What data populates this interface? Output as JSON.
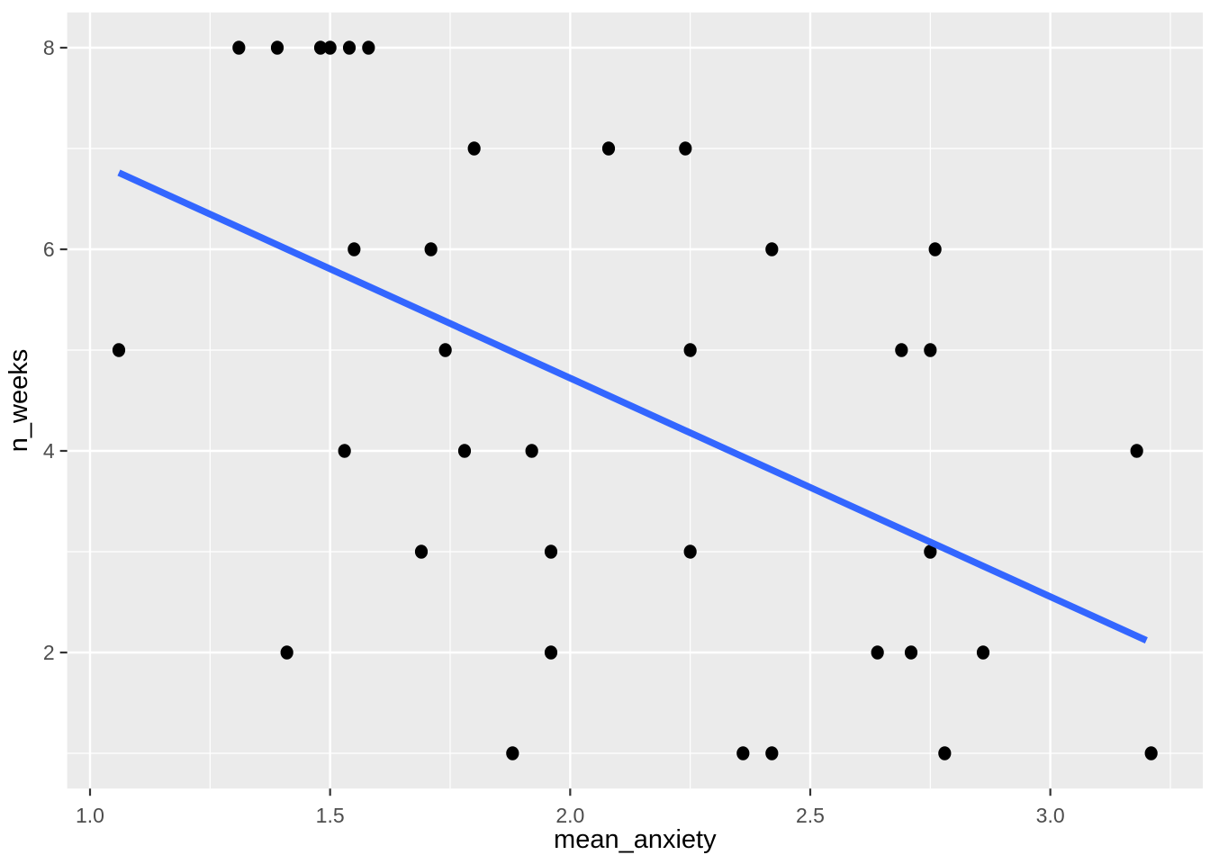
{
  "chart_data": {
    "type": "scatter",
    "title": "",
    "xlabel": "mean_anxiety",
    "ylabel": "n_weeks",
    "x_ticks": [
      {
        "value": 1.0,
        "label": "1.0"
      },
      {
        "value": 1.5,
        "label": "1.5"
      },
      {
        "value": 2.0,
        "label": "2.0"
      },
      {
        "value": 2.5,
        "label": "2.5"
      },
      {
        "value": 3.0,
        "label": "3.0"
      }
    ],
    "y_ticks": [
      {
        "value": 8,
        "label": "8"
      },
      {
        "value": 6,
        "label": "6"
      },
      {
        "value": 4,
        "label": "4"
      },
      {
        "value": 2,
        "label": "2"
      }
    ],
    "x_minor_gridlines": [
      1.25,
      1.75,
      2.25,
      2.75,
      3.25
    ],
    "y_minor_gridlines": [
      1,
      3,
      5,
      7
    ],
    "xlim": [
      0.9525,
      3.3175
    ],
    "ylim": [
      0.65,
      8.35
    ],
    "grid": "major-and-minor",
    "legend": "none",
    "colors": {
      "panel_background": "#EBEBEB",
      "gridline": "#FFFFFF",
      "point": "#000000",
      "trend_line": "#3366FF",
      "tick_mark": "#333333",
      "tick_label": "#4D4D4D",
      "axis_title": "#000000",
      "figure_background": "#FFFFFF"
    },
    "points": [
      {
        "x": 1.31,
        "y": 8
      },
      {
        "x": 1.39,
        "y": 8
      },
      {
        "x": 1.48,
        "y": 8
      },
      {
        "x": 1.5,
        "y": 8
      },
      {
        "x": 1.54,
        "y": 8
      },
      {
        "x": 1.58,
        "y": 8
      },
      {
        "x": 1.8,
        "y": 7
      },
      {
        "x": 2.08,
        "y": 7
      },
      {
        "x": 2.24,
        "y": 7
      },
      {
        "x": 1.55,
        "y": 6
      },
      {
        "x": 1.71,
        "y": 6
      },
      {
        "x": 2.42,
        "y": 6
      },
      {
        "x": 2.76,
        "y": 6
      },
      {
        "x": 1.06,
        "y": 5
      },
      {
        "x": 1.74,
        "y": 5
      },
      {
        "x": 2.25,
        "y": 5
      },
      {
        "x": 2.69,
        "y": 5
      },
      {
        "x": 2.75,
        "y": 5
      },
      {
        "x": 1.53,
        "y": 4
      },
      {
        "x": 1.78,
        "y": 4
      },
      {
        "x": 1.92,
        "y": 4
      },
      {
        "x": 3.18,
        "y": 4
      },
      {
        "x": 1.69,
        "y": 3
      },
      {
        "x": 1.96,
        "y": 3
      },
      {
        "x": 2.25,
        "y": 3
      },
      {
        "x": 2.75,
        "y": 3
      },
      {
        "x": 1.41,
        "y": 2
      },
      {
        "x": 1.96,
        "y": 2
      },
      {
        "x": 2.64,
        "y": 2
      },
      {
        "x": 2.71,
        "y": 2
      },
      {
        "x": 2.86,
        "y": 2
      },
      {
        "x": 1.88,
        "y": 1
      },
      {
        "x": 2.36,
        "y": 1
      },
      {
        "x": 2.42,
        "y": 1
      },
      {
        "x": 2.78,
        "y": 1
      },
      {
        "x": 3.21,
        "y": 1
      }
    ],
    "trend_line": {
      "x1": 1.06,
      "y1": 6.76,
      "x2": 3.2,
      "y2": 2.12
    }
  }
}
